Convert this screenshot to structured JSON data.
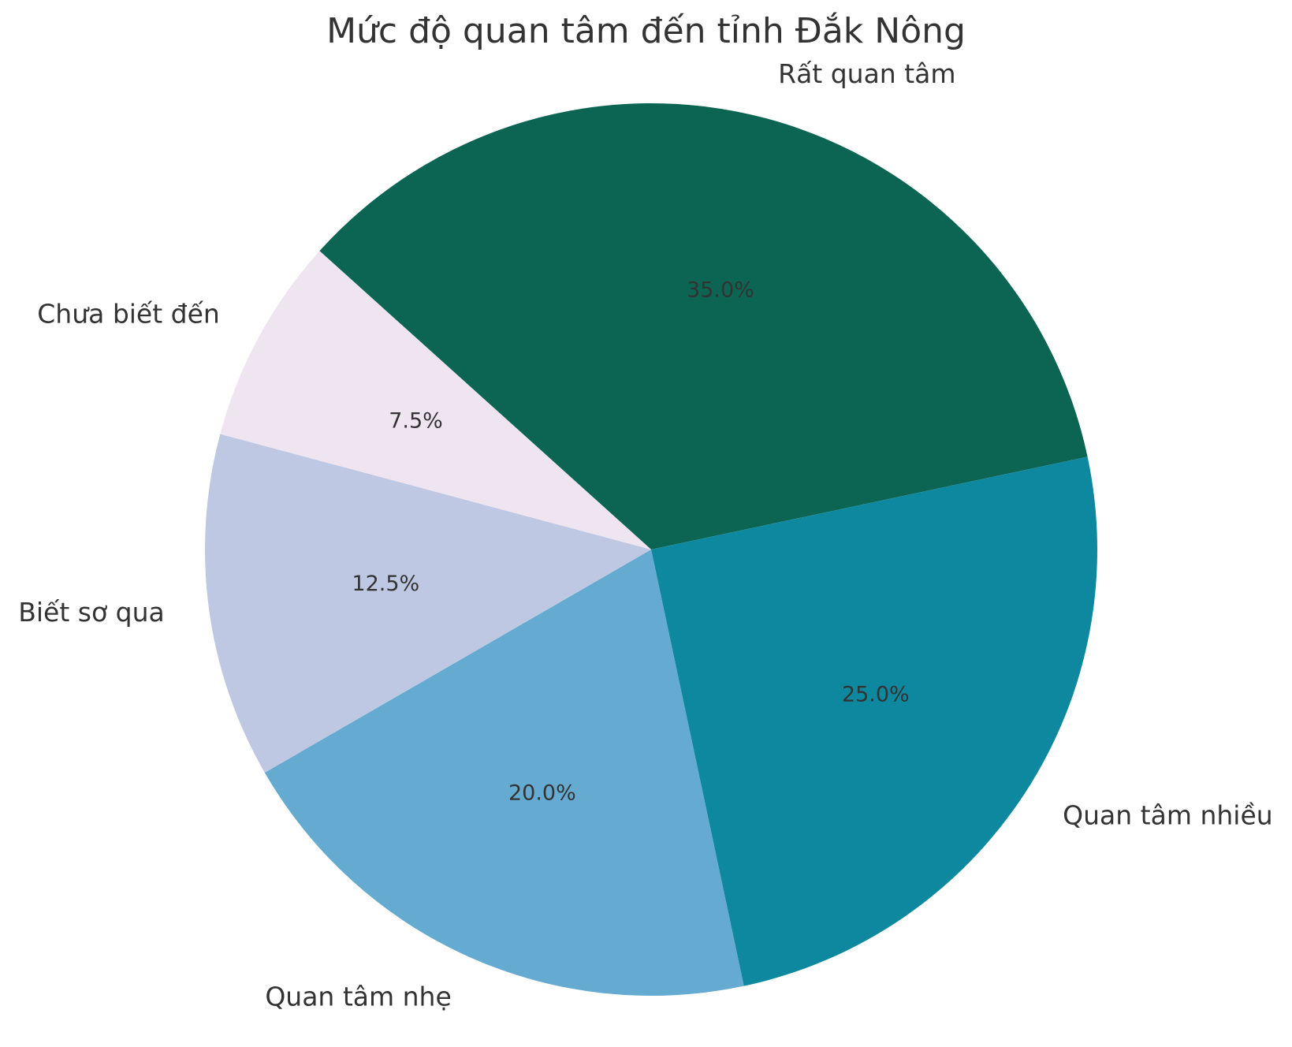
{
  "chart_data": {
    "type": "pie",
    "title": "Mức độ quan tâm đến tỉnh Đắk Nông",
    "labels": [
      "Rất quan tâm",
      "Quan tâm nhiều",
      "Quan tâm nhẹ",
      "Biết sơ qua",
      "Chưa biết đến"
    ],
    "values": [
      35.0,
      25.0,
      20.0,
      12.5,
      7.5
    ],
    "percent_labels": [
      "35.0%",
      "25.0%",
      "20.0%",
      "12.5%",
      "7.5%"
    ],
    "colors": [
      "#0c6553",
      "#0e889f",
      "#65aad1",
      "#bec8e2",
      "#efe5f1"
    ],
    "start_angle_deg": 138,
    "direction": "clockwise",
    "legend": "none"
  }
}
